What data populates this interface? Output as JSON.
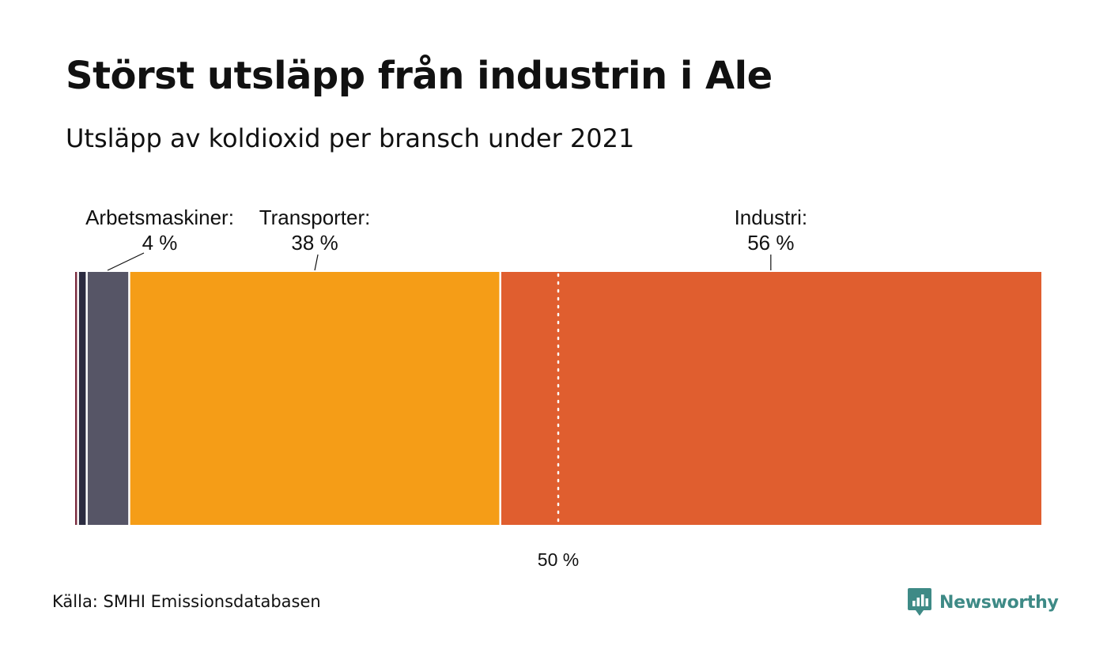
{
  "title": "Störst utsläpp från industrin i Ale",
  "subtitle": "Utsläpp av koldioxid per bransch under 2021",
  "source": "Källa: SMHI Emissionsdatabasen",
  "brand": {
    "name": "Newsworthy",
    "icon": "newsworthy-logo-icon",
    "color": "#3e8a86"
  },
  "chart_data": {
    "type": "bar",
    "orientation": "horizontal-stacked",
    "title": "Störst utsläpp från industrin i Ale",
    "subtitle": "Utsläpp av koldioxid per bransch under 2021",
    "unit": "%",
    "xlim": [
      0,
      100
    ],
    "reference_line": {
      "value": 50,
      "label": "50 %",
      "style": "dotted"
    },
    "series": [
      {
        "value": 0.3,
        "color": "#7a2b3e"
      },
      {
        "value": 0.9,
        "color": "#2b2b40"
      },
      {
        "name": "Arbetsmaskiner",
        "value": 4.4,
        "label_line1": "Arbetsmaskiner:",
        "label_line2": "4 %",
        "color": "#565566"
      },
      {
        "name": "Transporter",
        "value": 38.4,
        "label_line1": "Transporter:",
        "label_line2": "38 %",
        "color": "#f59d17"
      },
      {
        "name": "Industri",
        "value": 56.0,
        "label_line1": "Industri:",
        "label_line2": "56 %",
        "color": "#e05e2f"
      }
    ]
  }
}
